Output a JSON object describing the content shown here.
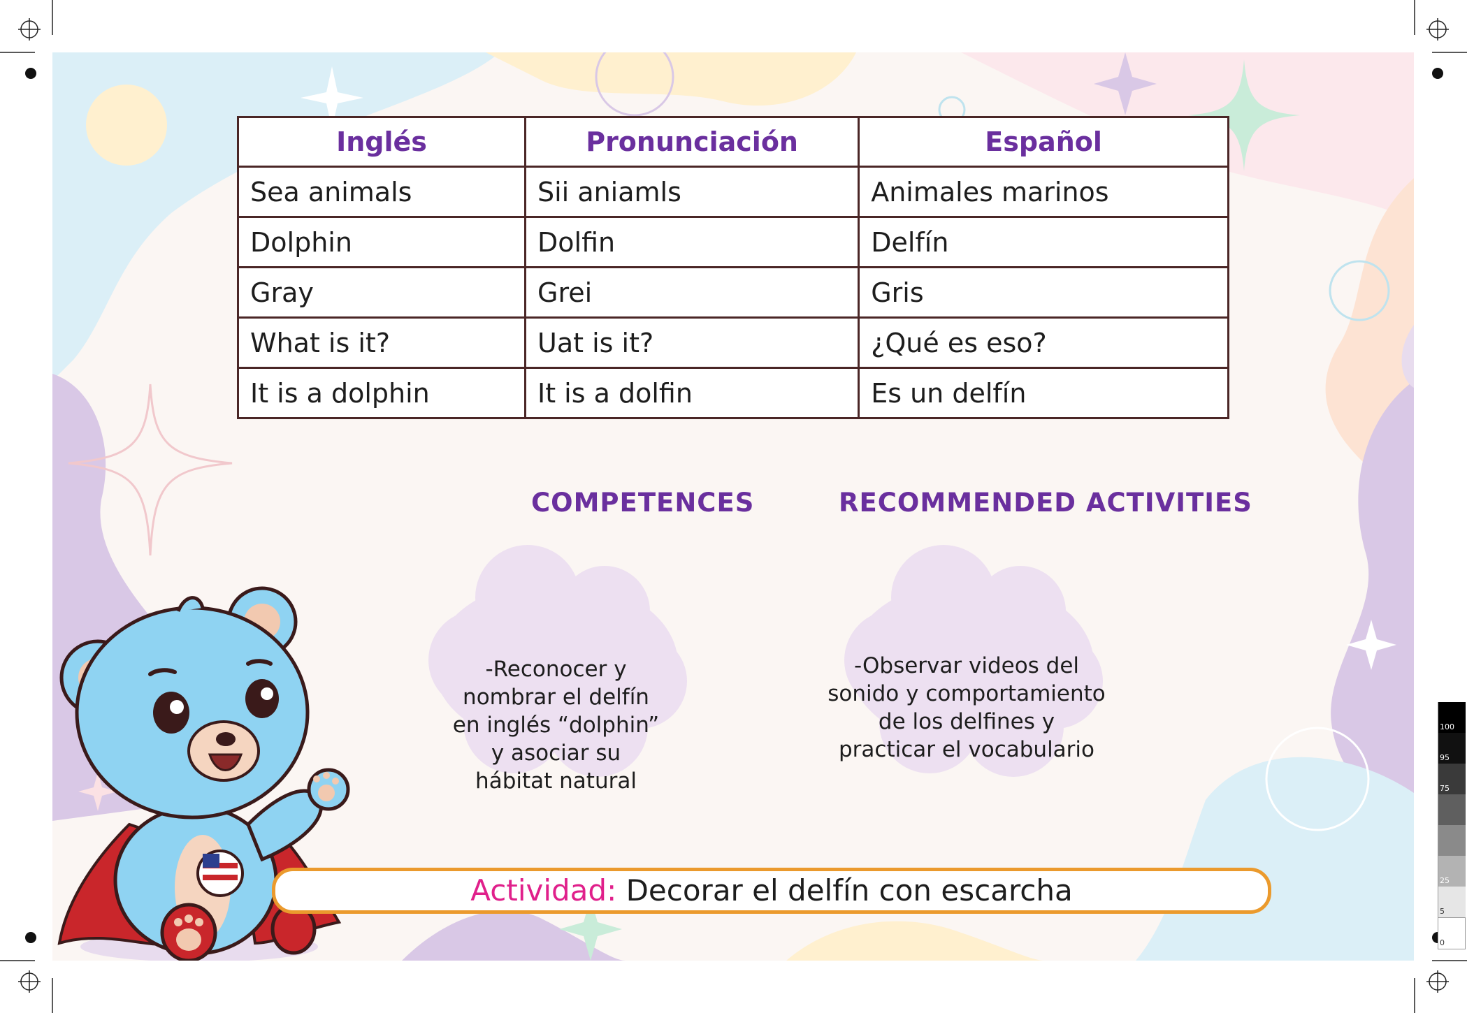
{
  "vocabulary": {
    "headers": [
      "Inglés",
      "Pronunciación",
      "Español"
    ],
    "rows": [
      [
        "Sea animals",
        "Sii aniamls",
        "Animales marinos"
      ],
      [
        "Dolphin",
        "Dolfin",
        "Delfín"
      ],
      [
        "Gray",
        "Grei",
        "Gris"
      ],
      [
        "What is it?",
        "Uat is it?",
        "¿Qué es eso?"
      ],
      [
        "It is a dolphin",
        "It is a dolfin",
        "Es un delfín"
      ]
    ]
  },
  "competences": {
    "title": "COMPETENCES",
    "text": "-Reconocer y nombrar el delfín en inglés “dolphin” y asociar su hábitat natural"
  },
  "activities": {
    "title": "RECOMMENDED ACTIVITIES",
    "text": "-Observar videos del sonido y comportamiento de los delfines y practicar el vocabulario"
  },
  "activity": {
    "label": "Actividad:",
    "text": " Decorar el delfín con escarcha"
  },
  "color_scale": {
    "labels": [
      "100",
      "95",
      "75",
      "",
      "",
      "25",
      "5",
      "0"
    ]
  },
  "colors": {
    "title_purple": "#6a2f9e",
    "activity_pink": "#e0208b",
    "activity_border": "#eb9a2d",
    "cloud": "#ede0f1",
    "bear_blue": "#8fd3f2",
    "cape_red": "#c9262b"
  }
}
